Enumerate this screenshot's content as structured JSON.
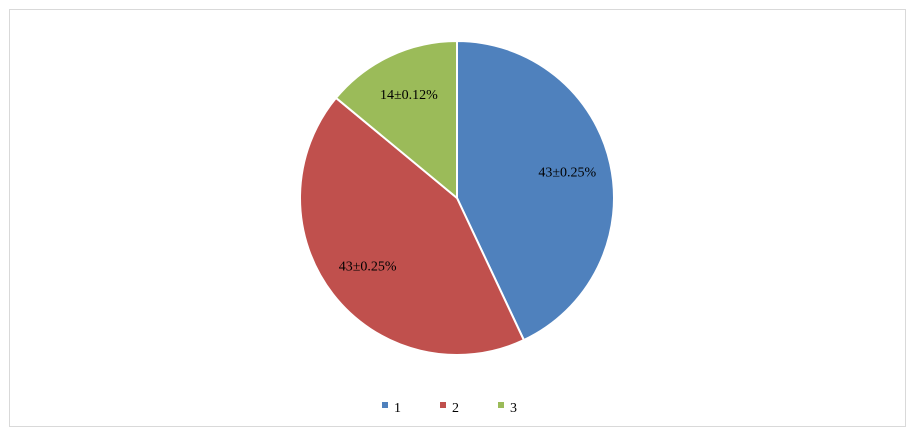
{
  "chart_data": {
    "type": "pie",
    "categories": [
      "1",
      "2",
      "3"
    ],
    "values": [
      43,
      43,
      14
    ],
    "value_labels": [
      "43±0.25%",
      "43±0.25%",
      "14±0.12%"
    ],
    "colors": [
      "#4f81bd",
      "#c0504d",
      "#9bbb59"
    ],
    "legend": "bottom"
  }
}
